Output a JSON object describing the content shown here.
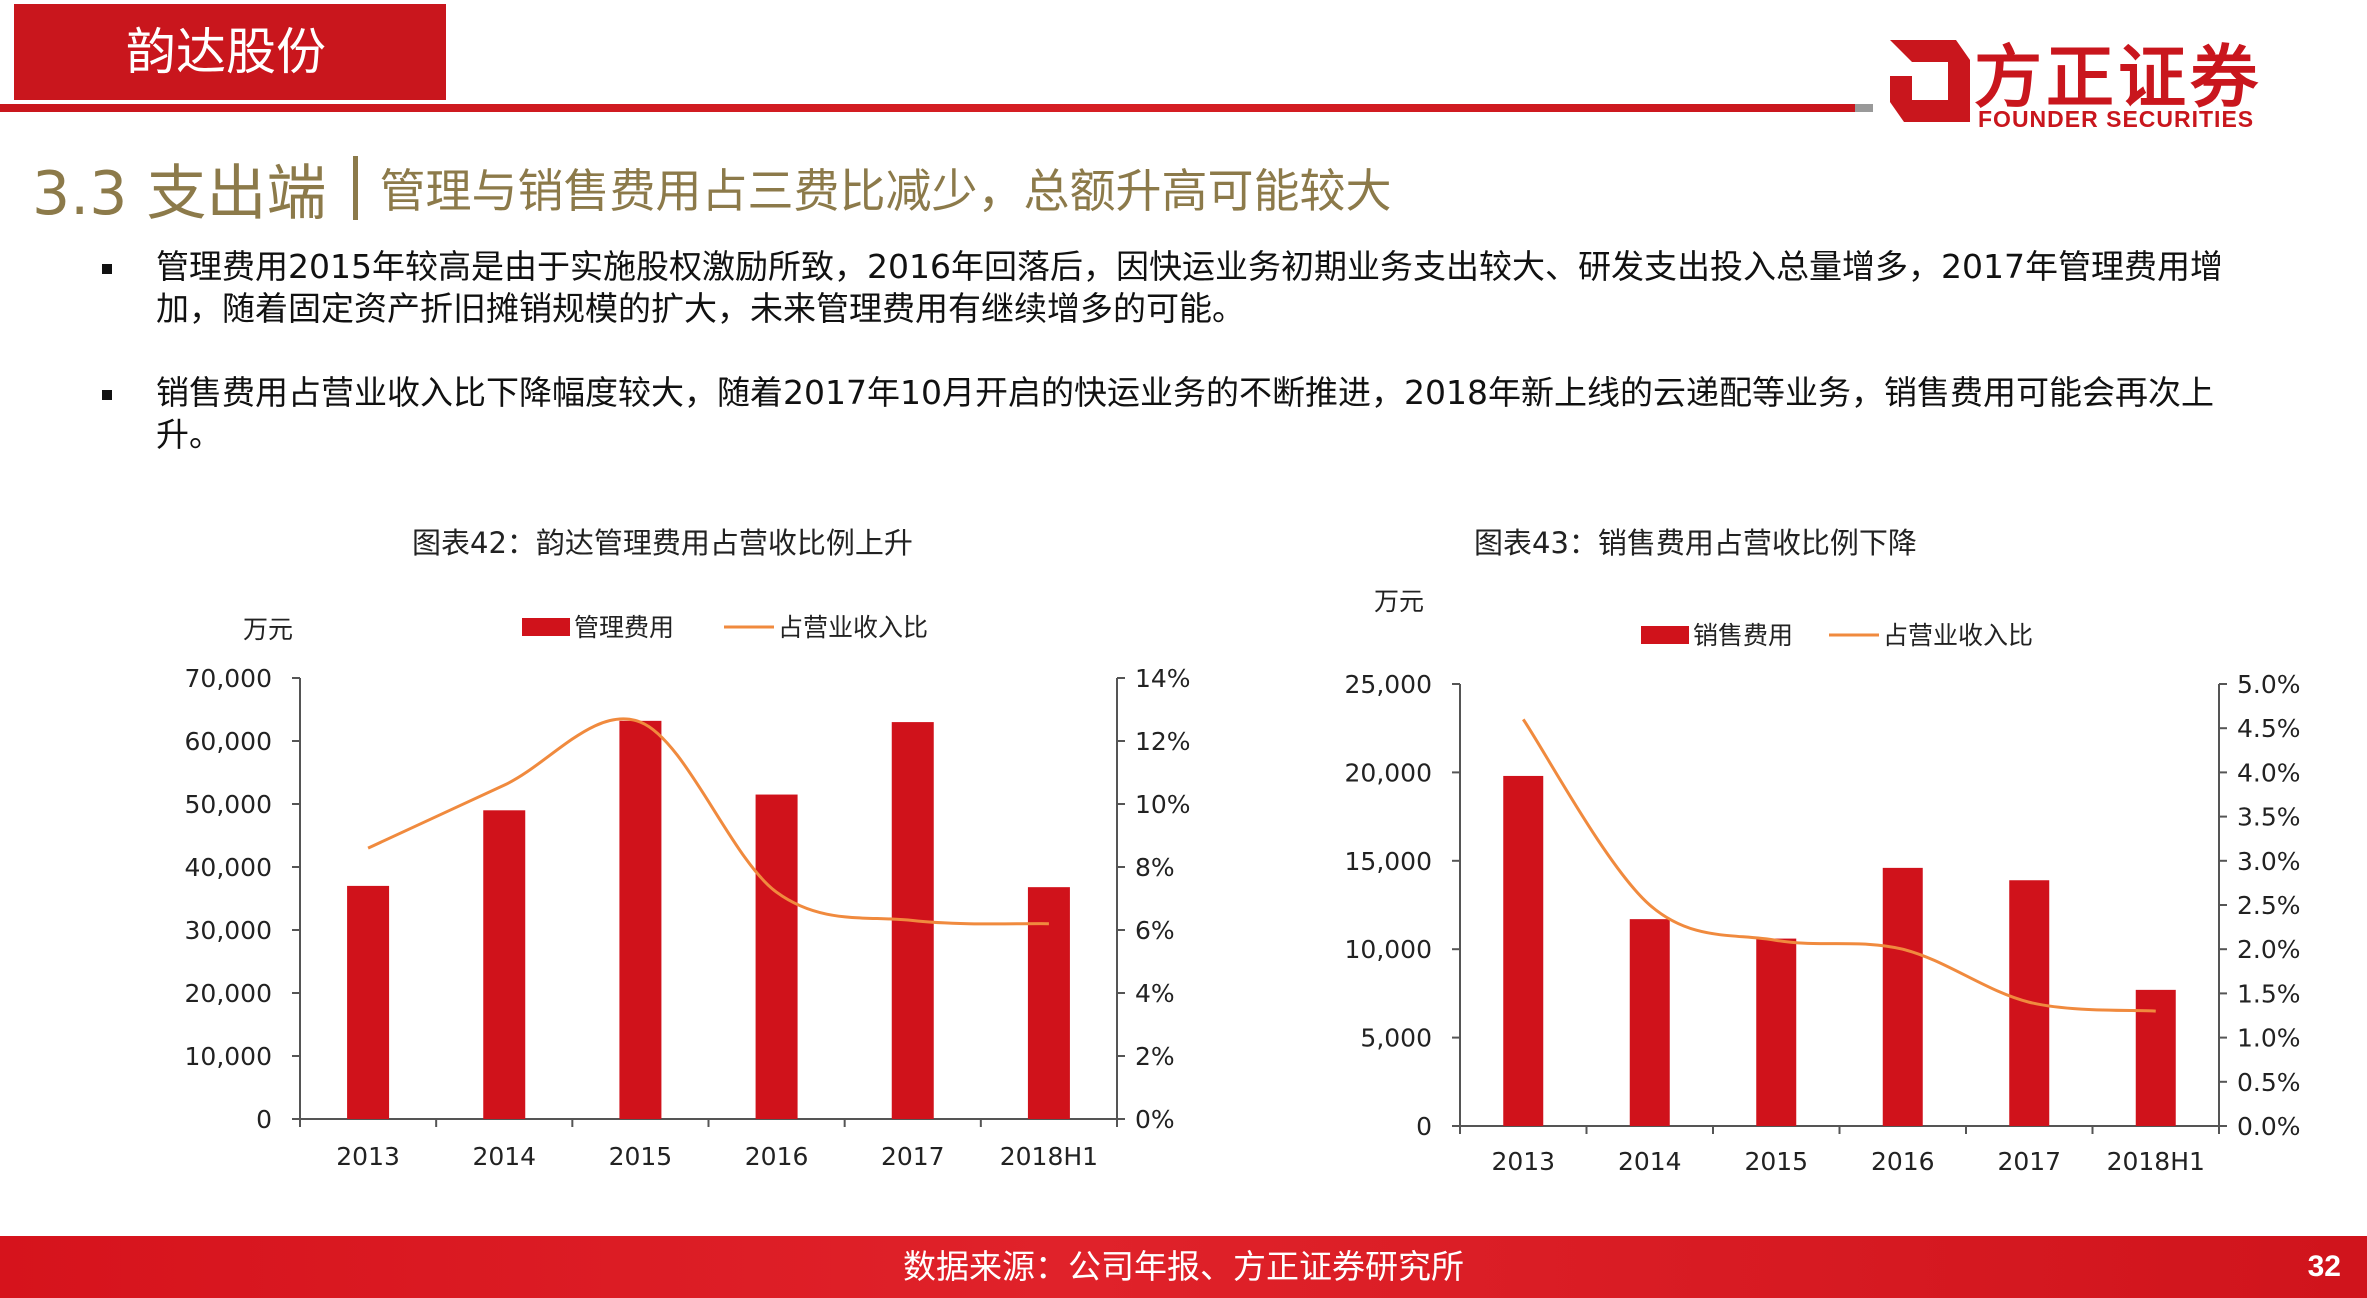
{
  "header": {
    "tab_title": "韵达股份",
    "logo_text": "方正证券",
    "logo_sub": "FOUNDER SECURITIES"
  },
  "section": {
    "number": "3.3 支出端",
    "subtitle": "管理与销售费用占三费比减少，总额升高可能较大"
  },
  "bullets": [
    "管理费用2015年较高是由于实施股权激励所致，2016年回落后，因快运业务初期业务支出较大、研发支出投入总量增多，2017年管理费用增加，随着固定资产折旧摊销规模的扩大，未来管理费用有继续增多的可能。",
    "销售费用占营业收入比下降幅度较大，随着2017年10月开启的快运业务的不断推进，2018年新上线的云递配等业务，销售费用可能会再次上升。"
  ],
  "chart_data": [
    {
      "type": "bar",
      "title": "图表42：韵达管理费用占营收比例上升",
      "ylabel": "万元",
      "categories": [
        "2013",
        "2014",
        "2015",
        "2016",
        "2017",
        "2018H1"
      ],
      "series": [
        {
          "name": "管理费用",
          "type": "bar",
          "axis": "left",
          "color": "#d0121b",
          "values": [
            37000,
            49000,
            63200,
            51500,
            63000,
            36800
          ]
        },
        {
          "name": "占营业收入比",
          "type": "line",
          "axis": "right",
          "color": "#f08a3e",
          "values": [
            8.6,
            10.6,
            12.6,
            7.2,
            6.3,
            6.2
          ]
        }
      ],
      "ylim": [
        0,
        70000
      ],
      "y_ticks": [
        0,
        10000,
        20000,
        30000,
        40000,
        50000,
        60000,
        70000
      ],
      "y_tick_labels": [
        "0",
        "10,000",
        "20,000",
        "30,000",
        "40,000",
        "50,000",
        "60,000",
        "70,000"
      ],
      "y2lim": [
        0,
        14
      ],
      "y2_ticks": [
        0,
        2,
        4,
        6,
        8,
        10,
        12,
        14
      ],
      "y2_tick_labels": [
        "0%",
        "2%",
        "4%",
        "6%",
        "8%",
        "10%",
        "12%",
        "14%"
      ],
      "legend_position": "top-center",
      "grid": false
    },
    {
      "type": "bar",
      "title": "图表43：销售费用占营收比例下降",
      "ylabel": "万元",
      "categories": [
        "2013",
        "2014",
        "2015",
        "2016",
        "2017",
        "2018H1"
      ],
      "series": [
        {
          "name": "销售费用",
          "type": "bar",
          "axis": "left",
          "color": "#d0121b",
          "values": [
            19800,
            11700,
            10600,
            14600,
            13900,
            7700
          ]
        },
        {
          "name": "占营业收入比",
          "type": "line",
          "axis": "right",
          "color": "#f08a3e",
          "values": [
            4.6,
            2.5,
            2.1,
            2.0,
            1.4,
            1.3
          ]
        }
      ],
      "ylim": [
        0,
        25000
      ],
      "y_ticks": [
        0,
        5000,
        10000,
        15000,
        20000,
        25000
      ],
      "y_tick_labels": [
        "0",
        "5,000",
        "10,000",
        "15,000",
        "20,000",
        "25,000"
      ],
      "y2lim": [
        0,
        5
      ],
      "y2_ticks": [
        0,
        0.5,
        1,
        1.5,
        2,
        2.5,
        3,
        3.5,
        4,
        4.5,
        5
      ],
      "y2_tick_labels": [
        "0.0%",
        "0.5%",
        "1.0%",
        "1.5%",
        "2.0%",
        "2.5%",
        "3.0%",
        "3.5%",
        "4.0%",
        "4.5%",
        "5.0%"
      ],
      "legend_position": "top-center",
      "grid": false
    }
  ],
  "footer": {
    "source": "数据来源：公司年报、方正证券研究所",
    "page": "32"
  }
}
